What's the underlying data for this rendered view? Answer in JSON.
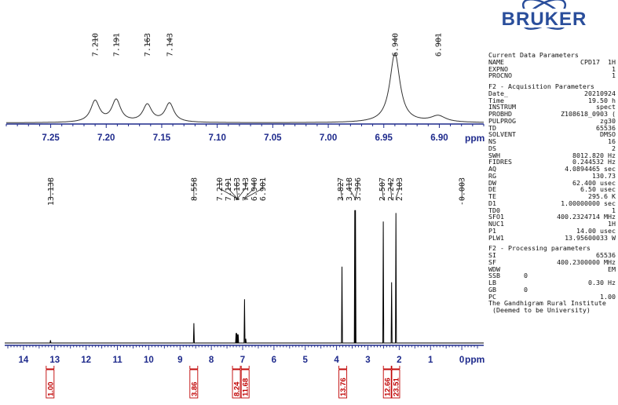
{
  "logo": {
    "text": "BRUKER"
  },
  "params": {
    "sections": [
      {
        "title": "Current Data Parameters",
        "rows": [
          {
            "k": "NAME",
            "v": "CPD17  1H"
          },
          {
            "k": "EXPNO",
            "v": "1"
          },
          {
            "k": "PROCNO",
            "v": "1"
          }
        ]
      },
      {
        "title": "F2 - Acquisition Parameters",
        "rows": [
          {
            "k": "Date_",
            "v": "20210924"
          },
          {
            "k": "Time",
            "v": "19.50 h"
          },
          {
            "k": "INSTRUM",
            "v": "spect"
          },
          {
            "k": "PROBHD",
            "v": "Z108618_0903 ("
          },
          {
            "k": "PULPROG",
            "v": "zg30"
          },
          {
            "k": "TD",
            "v": "65536"
          },
          {
            "k": "SOLVENT",
            "v": "DMSO"
          },
          {
            "k": "NS",
            "v": "16"
          },
          {
            "k": "DS",
            "v": "2"
          },
          {
            "k": "SWH",
            "v": "8012.820 Hz"
          },
          {
            "k": "FIDRES",
            "v": "0.244532 Hz"
          },
          {
            "k": "AQ",
            "v": "4.0894465 sec"
          },
          {
            "k": "RG",
            "v": "130.73"
          },
          {
            "k": "DW",
            "v": "62.400 usec"
          },
          {
            "k": "DE",
            "v": "6.50 usec"
          },
          {
            "k": "TE",
            "v": "295.6 K"
          },
          {
            "k": "D1",
            "v": "1.00000000 sec"
          },
          {
            "k": "TD0",
            "v": "1"
          },
          {
            "k": "SFO1",
            "v": "400.2324714 MHz"
          },
          {
            "k": "NUC1",
            "v": "1H"
          },
          {
            "k": "P1",
            "v": "14.00 usec"
          },
          {
            "k": "PLW1",
            "v": "13.95600033 W"
          }
        ]
      },
      {
        "title": "F2 - Processing parameters",
        "rows": [
          {
            "k": "SI",
            "v": "65536"
          },
          {
            "k": "SF",
            "v": "400.2300000 MHz"
          },
          {
            "k": "WDW",
            "v": "EM"
          },
          {
            "k": "SSB",
            "v": "0",
            "left": true
          },
          {
            "k": "LB",
            "v": "0.30 Hz"
          },
          {
            "k": "GB",
            "v": "0",
            "left": true
          },
          {
            "k": "PC",
            "v": "1.00"
          }
        ]
      }
    ],
    "footer": [
      "The Gandhigram Rural Institute",
      " (Deemed to be University)"
    ]
  },
  "chart_data": [
    {
      "type": "line",
      "title": "",
      "xlabel": "ppm",
      "xlim": [
        7.29,
        6.86
      ],
      "x_reversed": true,
      "xticks": [
        "7.25",
        "7.20",
        "7.15",
        "7.10",
        "7.05",
        "7.00",
        "6.95",
        "6.90"
      ],
      "peak_labels": [
        "7.210",
        "7.191",
        "7.163",
        "7.143",
        "6.940",
        "6.901"
      ],
      "peaks": [
        {
          "x": 7.21,
          "y": 0.27
        },
        {
          "x": 7.191,
          "y": 0.28
        },
        {
          "x": 7.163,
          "y": 0.22
        },
        {
          "x": 7.143,
          "y": 0.24
        },
        {
          "x": 6.94,
          "y": 0.88
        },
        {
          "x": 6.901,
          "y": 0.08
        }
      ]
    },
    {
      "type": "line",
      "title": "",
      "xlabel": "ppm",
      "xlim": [
        14.6,
        -0.7
      ],
      "x_reversed": true,
      "xticks": [
        "14",
        "13",
        "12",
        "11",
        "10",
        "9",
        "8",
        "7",
        "6",
        "5",
        "4",
        "3",
        "2",
        "1",
        "0"
      ],
      "peak_labels_group1": [
        "13.138"
      ],
      "peak_labels_group2": [
        "8.558"
      ],
      "peak_labels_group3": [
        "7.210",
        "7.191",
        "7.163",
        "7.143",
        "6.940",
        "6.901"
      ],
      "peak_labels_group4": [
        "3.827",
        "3.418",
        "3.396"
      ],
      "peak_labels_group5": [
        "2.507",
        "2.242",
        "2.103"
      ],
      "peak_labels_group6": [
        "-0.003"
      ],
      "peaks": [
        {
          "x": 13.138,
          "y": 0.02
        },
        {
          "x": 8.558,
          "y": 0.14
        },
        {
          "x": 7.21,
          "y": 0.07
        },
        {
          "x": 7.191,
          "y": 0.07
        },
        {
          "x": 7.163,
          "y": 0.06
        },
        {
          "x": 7.143,
          "y": 0.06
        },
        {
          "x": 6.94,
          "y": 0.31
        },
        {
          "x": 6.901,
          "y": 0.03
        },
        {
          "x": 3.827,
          "y": 0.54
        },
        {
          "x": 3.418,
          "y": 0.94
        },
        {
          "x": 3.396,
          "y": 0.94
        },
        {
          "x": 2.507,
          "y": 0.86
        },
        {
          "x": 2.242,
          "y": 0.43
        },
        {
          "x": 2.103,
          "y": 0.92
        },
        {
          "x": -0.003,
          "y": 0.0
        }
      ],
      "integrals": [
        {
          "label": "1.00",
          "x": 13.15
        },
        {
          "label": "3.86",
          "x": 8.56
        },
        {
          "label": "8.24",
          "x": 7.2
        },
        {
          "label": "11.68",
          "x": 6.92
        },
        {
          "label": "13.76",
          "x": 3.8
        },
        {
          "label": "12.66",
          "x": 2.38
        },
        {
          "label": "23.51",
          "x": 2.11
        }
      ]
    }
  ]
}
